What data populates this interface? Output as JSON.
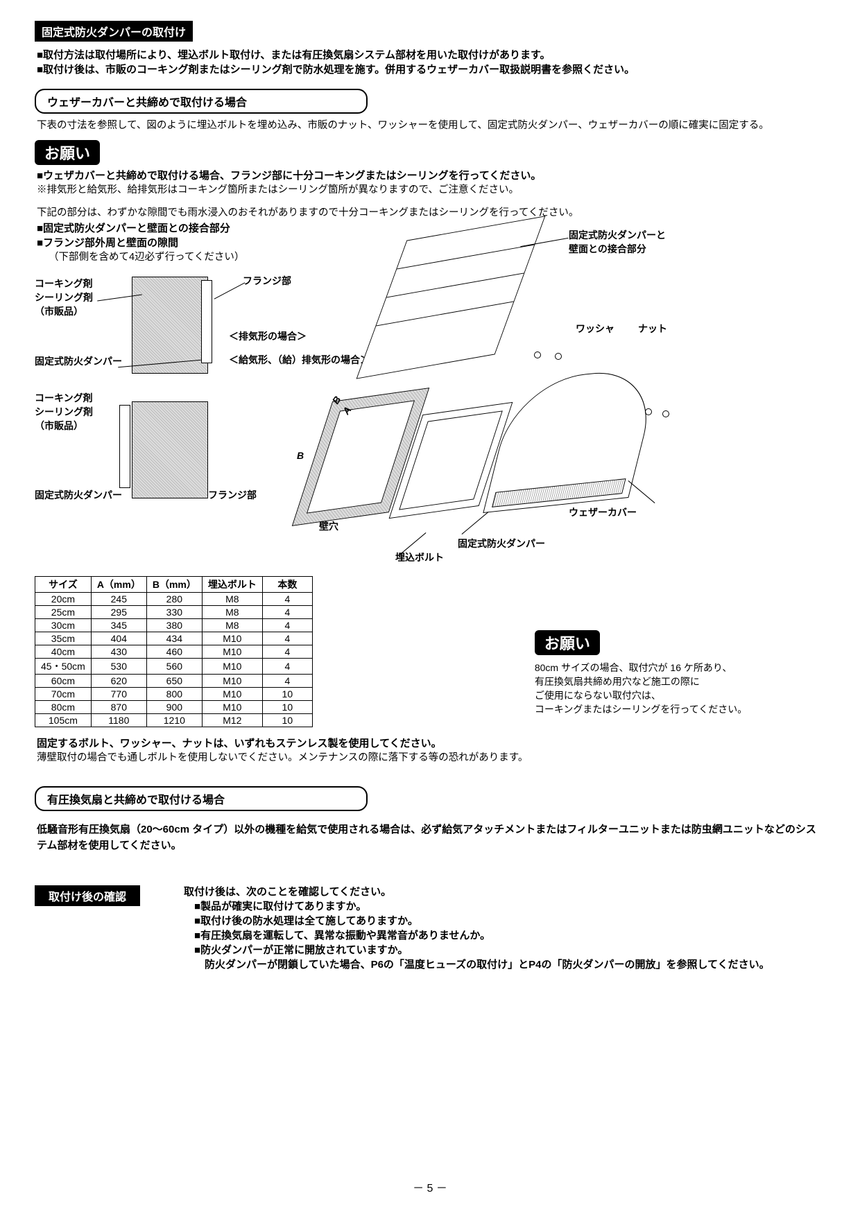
{
  "header1": "固定式防火ダンパーの取付け",
  "intro1": "■取付方法は取付場所により、埋込ボルト取付け、または有圧換気扇システム部材を用いた取付けがあります。",
  "intro2": "■取付け後は、市販のコーキング剤またはシーリング剤で防水処理を施す。併用するウェザーカバー取扱説明書を参照ください。",
  "rounded1": "ウェザーカバーと共締めで取付ける場合",
  "rounded1_text": "下表の寸法を参照して、図のように埋込ボルトを埋め込み、市販のナット、ワッシャーを使用して、固定式防火ダンパー、ウェザーカバーの順に確実に固定する。",
  "onegai1_line1": "■ウェザカバーと共締めで取付ける場合、フランジ部に十分コーキングまたはシーリングを行ってください。",
  "onegai1_line2": "※排気形と給気形、給排気形はコーキング箇所またはシーリング箇所が異なりますので、ご注意ください。",
  "onegai1_line3": "下記の部分は、わずかな隙間でも雨水浸入のおそれがありますので十分コーキングまたはシーリングを行ってください。",
  "onegai1_line4": "■固定式防火ダンパーと壁面との接合部分",
  "onegai1_line5": "■フランジ部外周と壁面の隙間",
  "onegai1_line6": "（下部側を含めて4辺必ず行ってください）",
  "diagram": {
    "label_caulk": "コーキング剤\nシーリング剤\n（市販品）",
    "label_flange": "フランジ部",
    "label_damper": "固定式防火ダンパー",
    "label_exhaust": "＜排気形の場合＞",
    "label_supply": "＜給気形、（給）排気形の場合＞",
    "label_caulk2": "コーキング剤\nシーリング剤\n（市販品）",
    "label_damper2": "固定式防火ダンパー",
    "label_flange2": "フランジ部",
    "label_wallhole": "壁穴",
    "label_damperwall": "固定式防火ダンパーと\n壁面との接合部分",
    "label_washer": "ワッシャ",
    "label_nut": "ナット",
    "label_weathercover": "ウェザーカバー",
    "label_damper3": "固定式防火ダンパー",
    "label_embedbolt": "埋込ボルト",
    "dim_A": "A",
    "dim_B": "B"
  },
  "table": {
    "headers": [
      "サイズ",
      "A（mm）",
      "B（mm）",
      "埋込ボルト",
      "本数"
    ],
    "rows": [
      [
        "20cm",
        "245",
        "280",
        "M8",
        "4"
      ],
      [
        "25cm",
        "295",
        "330",
        "M8",
        "4"
      ],
      [
        "30cm",
        "345",
        "380",
        "M8",
        "4"
      ],
      [
        "35cm",
        "404",
        "434",
        "M10",
        "4"
      ],
      [
        "40cm",
        "430",
        "460",
        "M10",
        "4"
      ],
      [
        "45・50cm",
        "530",
        "560",
        "M10",
        "4"
      ],
      [
        "60cm",
        "620",
        "650",
        "M10",
        "4"
      ],
      [
        "70cm",
        "770",
        "800",
        "M10",
        "10"
      ],
      [
        "80cm",
        "870",
        "900",
        "M10",
        "10"
      ],
      [
        "105cm",
        "1180",
        "1210",
        "M12",
        "10"
      ]
    ]
  },
  "onegai2": "お願い",
  "onegai2_text": "80cm サイズの場合、取付穴が 16 ケ所あり、\n有圧換気扇共締め用穴など施工の際に\nご使用にならない取付穴は、\nコーキングまたはシーリングを行ってください。",
  "bolt_note1": "固定するボルト、ワッシャー、ナットは、いずれもステンレス製を使用してください。",
  "bolt_note2": "薄壁取付の場合でも通しボルトを使用しないでください。メンテナンスの際に落下する等の恐れがあります。",
  "rounded2": "有圧換気扇と共締めで取付ける場合",
  "rounded2_text": "低騒音形有圧換気扇（20～60cm タイプ）以外の機種を給気で使用される場合は、必ず給気アタッチメントまたはフィルターユニットまたは防虫網ユニットなどのシステム部材を使用してください。",
  "header2": "取付け後の確認",
  "check_intro": "取付け後は、次のことを確認してください。",
  "check1": "■製品が確実に取付けてありますか。",
  "check2": "■取付け後の防水処理は全て施してありますか。",
  "check3": "■有圧換気扇を運転して、異常な振動や異常音がありませんか。",
  "check4": "■防火ダンパーが正常に開放されていますか。",
  "check5": "　防火ダンパーが閉鎖していた場合、P6の「温度ヒューズの取付け」とP4の「防火ダンパーの開放」を参照してください。",
  "page": "－ 5 －"
}
